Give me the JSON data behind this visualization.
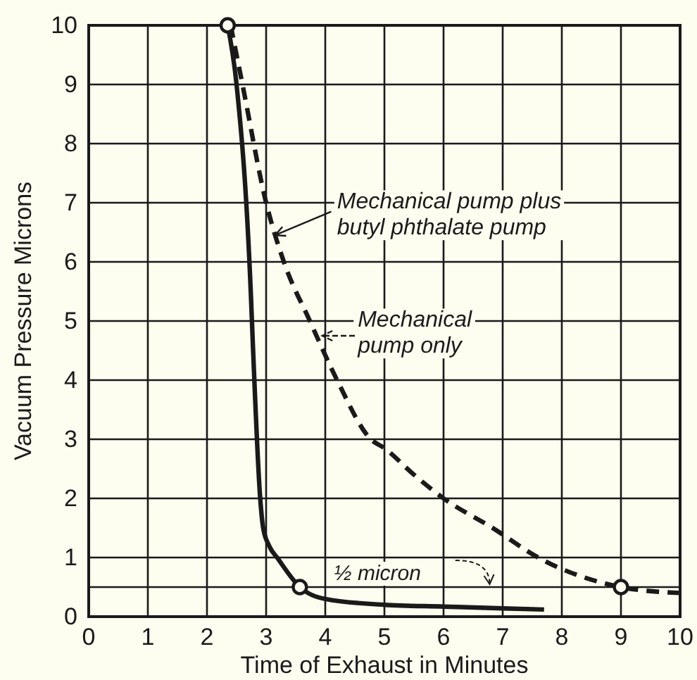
{
  "chart_data": {
    "type": "line",
    "xlabel": "Time of Exhaust in Minutes",
    "ylabel": "Vacuum Pressure Microns",
    "xlim": [
      0,
      10
    ],
    "ylim": [
      0,
      10
    ],
    "xticks": [
      0,
      1,
      2,
      3,
      4,
      5,
      6,
      7,
      8,
      9,
      10
    ],
    "yticks": [
      0,
      1,
      2,
      3,
      4,
      5,
      6,
      7,
      8,
      9,
      10
    ],
    "grid": true,
    "legend": "right",
    "series": [
      {
        "name": "Mechanical pump plus butyl phthalate pump",
        "color": "#1a1a1a",
        "line_style": "solid",
        "x": [
          2.35,
          2.5,
          2.74,
          2.78,
          2.9,
          2.95,
          3.05,
          3.2,
          3.57,
          4,
          5,
          6,
          7,
          7.7
        ],
        "values": [
          10,
          9,
          5.5,
          4.5,
          2,
          1.5,
          1.2,
          0.98,
          0.5,
          0.3,
          0.2,
          0.17,
          0.14,
          0.12
        ]
      },
      {
        "name": "Mechanical pump only",
        "color": "#1a1a1a",
        "line_style": "dashed",
        "x": [
          2.4,
          2.6,
          3.0,
          3.3,
          3.74,
          4.2,
          4.77,
          5,
          5.5,
          6,
          6.83,
          7.6,
          9,
          10
        ],
        "values": [
          10,
          9,
          7,
          6,
          5,
          4,
          3,
          2.85,
          2.4,
          2,
          1.5,
          1,
          0.5,
          0.4
        ]
      },
      {
        "type": "scatter",
        "marker": "circle",
        "color": "#1a1a1a",
        "x": [
          2.35,
          3.57,
          9
        ],
        "values": [
          10,
          0.5,
          0.5
        ]
      }
    ],
    "ref_lines": [
      {
        "axis": "y",
        "value": 0.5,
        "label": "½ micron",
        "color": "#1a1a1a"
      }
    ]
  }
}
